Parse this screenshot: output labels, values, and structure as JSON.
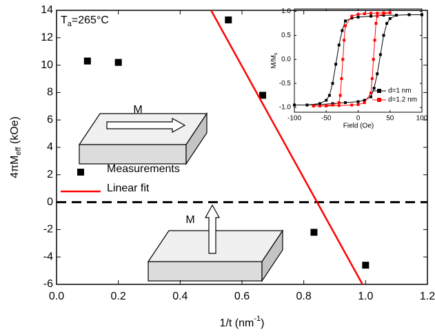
{
  "chart_data": [
    {
      "type": "scatter",
      "annotation": [
        "T",
        "a",
        "=265°C"
      ],
      "x_label": [
        "1/t (nm",
        "-1",
        ")"
      ],
      "y_label": [
        "4πM",
        "eff",
        "  (kOe)"
      ],
      "xlim": [
        0,
        1.2
      ],
      "xticks": [
        {
          "value": 0,
          "label": "0.0"
        },
        0.2,
        0.4,
        0.6,
        0.8,
        {
          "value": 1,
          "label": "1.0"
        },
        1.2
      ],
      "ylim": [
        -6,
        14
      ],
      "yticks": [
        -6,
        -4,
        -2,
        0,
        2,
        4,
        6,
        8,
        10,
        12,
        14
      ],
      "reference_y": 0,
      "series": [
        {
          "name": "Measurements",
          "color": "#000000",
          "marker": "square",
          "x": [
            0.1,
            0.2,
            0.556,
            0.667,
            0.833,
            1.0
          ],
          "values": [
            10.3,
            10.2,
            13.3,
            7.8,
            -2.2,
            -4.6
          ]
        },
        {
          "name": "Linear fit",
          "color": "#ff0000",
          "marker": "line",
          "x": [
            0.5,
            0.99
          ],
          "values": [
            14,
            -6
          ]
        }
      ],
      "diagram_labels": [
        "M",
        "M"
      ]
    },
    {
      "type": "line",
      "x_label": "Field (Oe)",
      "y_label": [
        "M/M",
        "s"
      ],
      "xlim": [
        -100,
        100
      ],
      "xticks": [
        -100,
        -50,
        0,
        50,
        100
      ],
      "ylim": [
        -1.1,
        1.05
      ],
      "yticks": [
        {
          "value": -1,
          "label": "-1.0"
        },
        -0.5,
        {
          "value": 0,
          "label": "0.0"
        },
        0.5,
        {
          "value": 1,
          "label": "1.0"
        }
      ],
      "series": [
        {
          "name": "d=1 nm",
          "color": "#000000",
          "x": [
            100,
            80,
            60,
            40,
            20,
            0,
            -10,
            -20,
            -25,
            -30,
            -35,
            -40,
            -45,
            -50,
            -60,
            -80,
            -100,
            -100,
            -80,
            -60,
            -40,
            -20,
            0,
            10,
            20,
            25,
            30,
            35,
            40,
            45,
            50,
            60,
            80,
            100
          ],
          "values": [
            0.93,
            0.93,
            0.92,
            0.92,
            0.9,
            0.88,
            0.86,
            0.8,
            0.6,
            0.3,
            -0.1,
            -0.5,
            -0.75,
            -0.85,
            -0.92,
            -0.95,
            -0.95,
            -0.95,
            -0.95,
            -0.94,
            -0.92,
            -0.9,
            -0.88,
            -0.85,
            -0.78,
            -0.6,
            -0.3,
            0.1,
            0.5,
            0.75,
            0.85,
            0.92,
            0.93,
            0.93
          ]
        },
        {
          "name": "d=1.2 nm",
          "color": "#ff0000",
          "x": [
            50,
            40,
            30,
            20,
            10,
            0,
            -10,
            -20,
            -22,
            -24,
            -26,
            -28,
            -30,
            -40,
            -50,
            -60,
            -70,
            -70,
            -50,
            -30,
            -10,
            0,
            10,
            20,
            22,
            24,
            26,
            28,
            30,
            40,
            50
          ],
          "values": [
            0.97,
            0.97,
            0.96,
            0.96,
            0.95,
            0.94,
            0.9,
            0.7,
            0.4,
            0,
            -0.4,
            -0.75,
            -0.9,
            -0.95,
            -0.96,
            -0.97,
            -0.97,
            -0.97,
            -0.97,
            -0.96,
            -0.95,
            -0.94,
            -0.9,
            -0.7,
            -0.4,
            0,
            0.4,
            0.75,
            0.9,
            0.95,
            0.97
          ]
        }
      ]
    }
  ]
}
